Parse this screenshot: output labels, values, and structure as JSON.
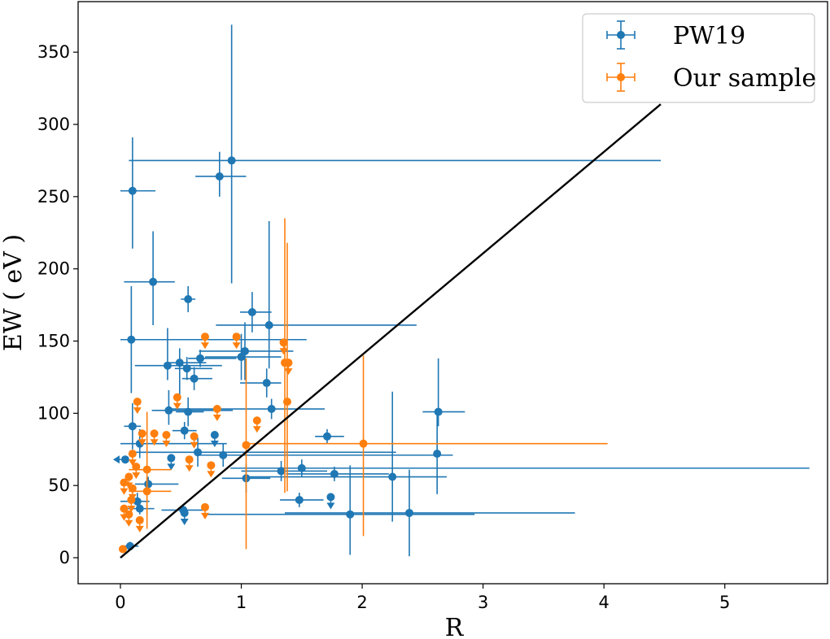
{
  "chart_data": {
    "type": "scatter",
    "xlabel": "R",
    "ylabel": "EW ( eV )",
    "xlim": [
      -0.35,
      5.85
    ],
    "ylim": [
      -18,
      385
    ],
    "xticks": [
      0,
      1,
      2,
      3,
      4,
      5
    ],
    "yticks": [
      0,
      50,
      100,
      150,
      200,
      250,
      300,
      350
    ],
    "grid": false,
    "legend_position": "top-right",
    "reference_line": {
      "x": [
        0.0,
        4.47
      ],
      "y": [
        0,
        314
      ],
      "color": "#000000"
    },
    "series": [
      {
        "name": "PW19",
        "color": "#1f77b4",
        "points": [
          {
            "x": 0.92,
            "y": 275,
            "xerr": [
              0.85,
              3.55
            ],
            "yerr": [
              85,
              94
            ]
          },
          {
            "x": 0.82,
            "y": 264,
            "xerr": [
              0.2,
              0.22
            ],
            "yerr": [
              14,
              17
            ]
          },
          {
            "x": 0.1,
            "y": 254,
            "xerr": [
              0.1,
              0.19
            ],
            "yerr": [
              40,
              37
            ]
          },
          {
            "x": 0.27,
            "y": 191,
            "xerr": [
              0.24,
              0.18
            ],
            "yerr": [
              30,
              35
            ]
          },
          {
            "x": 0.56,
            "y": 179,
            "xerr": [
              0.06,
              0.06
            ],
            "yerr": [
              9,
              9
            ]
          },
          {
            "x": 1.09,
            "y": 170,
            "xerr": [
              0.1,
              0.16
            ],
            "yerr": [
              14,
              14
            ]
          },
          {
            "x": 1.23,
            "y": 161,
            "xerr": [
              0.44,
              1.22
            ],
            "yerr": [
              30,
              72
            ]
          },
          {
            "x": 0.09,
            "y": 151,
            "xerr": [
              0.09,
              1.45
            ],
            "yerr": [
              37,
              37
            ]
          },
          {
            "x": 1.03,
            "y": 143,
            "xerr": [
              0.38,
              0.4
            ],
            "yerr": [
              20,
              20
            ]
          },
          {
            "x": 1.0,
            "y": 139,
            "xerr": [
              0.3,
              0.33
            ],
            "yerr": [
              16,
              16
            ]
          },
          {
            "x": 0.66,
            "y": 138,
            "xerr": [
              0.1,
              0.3
            ],
            "yerr": [
              6,
              6
            ]
          },
          {
            "x": 0.49,
            "y": 135,
            "xerr": [
              0.1,
              0.22
            ],
            "yerr": [
              24,
              10
            ]
          },
          {
            "x": 0.39,
            "y": 133,
            "xerr": [
              0.27,
              0.45
            ],
            "yerr": [
              10,
              26
            ]
          },
          {
            "x": 0.55,
            "y": 131,
            "xerr": [
              0.1,
              0.21
            ],
            "yerr": [
              8,
              8
            ]
          },
          {
            "x": 0.61,
            "y": 124,
            "xerr": [
              0.1,
              0.15
            ],
            "yerr": [
              8,
              8
            ]
          },
          {
            "x": 1.21,
            "y": 121,
            "xerr": [
              0.22,
              0.12
            ],
            "yerr": [
              10,
              10
            ]
          },
          {
            "x": 1.25,
            "y": 103,
            "xerr": [
              0.84,
              0.44
            ],
            "yerr": [
              7,
              7
            ]
          },
          {
            "x": 0.4,
            "y": 102,
            "xerr": [
              0.14,
              0.53
            ],
            "yerr": [
              10,
              14
            ]
          },
          {
            "x": 0.56,
            "y": 101,
            "xerr": [
              0.1,
              0.13
            ],
            "yerr": [
              10,
              10
            ]
          },
          {
            "x": 2.63,
            "y": 101,
            "xerr": [
              0.13,
              0.22
            ],
            "yerr": [
              10,
              37
            ]
          },
          {
            "x": 0.1,
            "y": 91,
            "xerr": [
              0.07,
              0.07
            ],
            "yerr": [
              16,
              16
            ]
          },
          {
            "x": 0.53,
            "y": 88,
            "xerr": [
              0.1,
              0.1
            ],
            "yerr": [
              6,
              6
            ]
          },
          {
            "x": 1.71,
            "y": 84,
            "xerr": [
              0.1,
              0.14
            ],
            "yerr": [
              5,
              5
            ]
          },
          {
            "x": 0.16,
            "y": 79,
            "xerr": [
              0.16,
              0.72
            ],
            "yerr": [
              10,
              10
            ]
          },
          {
            "x": 0.64,
            "y": 73,
            "xerr": [
              0.57,
              1.64
            ],
            "yerr": [
              10,
              10
            ]
          },
          {
            "x": 2.62,
            "y": 72,
            "xerr": [
              0.0,
              0.0
            ],
            "yerr": [
              28,
              28
            ]
          },
          {
            "x": 0.85,
            "y": 71,
            "xerr": [
              0.2,
              1.9
            ],
            "yerr": [
              8,
              8
            ]
          },
          {
            "x": 1.5,
            "y": 62,
            "xerr": [
              0.59,
              4.2
            ],
            "yerr": [
              6,
              6
            ]
          },
          {
            "x": 1.33,
            "y": 60,
            "xerr": [
              0.33,
              0.38
            ],
            "yerr": [
              7,
              7
            ]
          },
          {
            "x": 1.77,
            "y": 58,
            "xerr": [
              0.4,
              0.45
            ],
            "yerr": [
              5,
              5
            ]
          },
          {
            "x": 2.25,
            "y": 56,
            "xerr": [
              1.22,
              0.45
            ],
            "yerr": [
              31,
              59
            ]
          },
          {
            "x": 1.04,
            "y": 55,
            "xerr": [
              0.2,
              0.2
            ],
            "yerr": [
              10,
              10
            ]
          },
          {
            "x": 0.23,
            "y": 51,
            "xerr": [
              0.11,
              0.25
            ],
            "yerr": [
              5,
              5
            ]
          },
          {
            "x": 1.48,
            "y": 40,
            "xerr": [
              0.16,
              0.2
            ],
            "yerr": [
              5,
              5
            ]
          },
          {
            "x": 0.14,
            "y": 39,
            "xerr": [
              0.14,
              0.1
            ],
            "yerr": [
              6,
              6
            ]
          },
          {
            "x": 0.16,
            "y": 34,
            "xerr": [
              0.13,
              0.12
            ],
            "yerr": [
              4,
              4
            ]
          },
          {
            "x": 0.52,
            "y": 33,
            "xerr": [
              0.18,
              0.18
            ],
            "yerr": [
              4,
              4
            ]
          },
          {
            "x": 2.39,
            "y": 31,
            "xerr": [
              1.03,
              1.37
            ],
            "yerr": [
              30,
              30
            ]
          },
          {
            "x": 1.9,
            "y": 30,
            "xerr": [
              1.18,
              1.03
            ],
            "yerr": [
              28,
              34
            ]
          },
          {
            "x": 0.08,
            "y": 8,
            "xerr": [
              0.07,
              0.07
            ],
            "yerr": [
              3,
              3
            ]
          }
        ],
        "upper_limits": [
          {
            "x": 0.78,
            "y": 85
          },
          {
            "x": 0.42,
            "y": 69
          },
          {
            "x": 0.04,
            "y": 68,
            "left_limit": true
          },
          {
            "x": 1.74,
            "y": 42
          },
          {
            "x": 0.53,
            "y": 31
          }
        ]
      },
      {
        "name": "Our sample",
        "color": "#ff7f0e",
        "points": [
          {
            "x": 1.36,
            "y": 135,
            "xerr": [
              0.02,
              0.02
            ],
            "yerr": [
              90,
              100
            ]
          },
          {
            "x": 1.38,
            "y": 108,
            "xerr": [
              0.02,
              0.02
            ],
            "yerr": [
              62,
              110
            ]
          },
          {
            "x": 2.01,
            "y": 79,
            "xerr": [
              0.98,
              2.02
            ],
            "yerr": [
              64,
              61
            ]
          },
          {
            "x": 1.04,
            "y": 78,
            "xerr": [
              0.0,
              0.0
            ],
            "yerr": [
              72,
              60
            ]
          },
          {
            "x": 0.22,
            "y": 61,
            "xerr": [
              0.15,
              0.2
            ],
            "yerr": [
              41,
              40
            ]
          },
          {
            "x": 0.22,
            "y": 46,
            "xerr": [
              0.15,
              0.2
            ],
            "yerr": [
              16,
              10
            ]
          },
          {
            "x": 0.02,
            "y": 6,
            "xerr": [
              0.02,
              0.02
            ],
            "yerr": [
              2,
              2
            ]
          }
        ],
        "upper_limits": [
          {
            "x": 0.7,
            "y": 153
          },
          {
            "x": 0.96,
            "y": 153
          },
          {
            "x": 1.35,
            "y": 149
          },
          {
            "x": 1.39,
            "y": 135
          },
          {
            "x": 0.47,
            "y": 111
          },
          {
            "x": 0.8,
            "y": 103
          },
          {
            "x": 1.13,
            "y": 95
          },
          {
            "x": 0.14,
            "y": 108
          },
          {
            "x": 0.18,
            "y": 86
          },
          {
            "x": 0.28,
            "y": 86
          },
          {
            "x": 0.38,
            "y": 85
          },
          {
            "x": 0.61,
            "y": 84
          },
          {
            "x": 0.1,
            "y": 72
          },
          {
            "x": 0.57,
            "y": 68
          },
          {
            "x": 0.75,
            "y": 64
          },
          {
            "x": 0.13,
            "y": 63
          },
          {
            "x": 0.07,
            "y": 56
          },
          {
            "x": 0.03,
            "y": 52
          },
          {
            "x": 0.1,
            "y": 48
          },
          {
            "x": 0.09,
            "y": 40
          },
          {
            "x": 0.03,
            "y": 34
          },
          {
            "x": 0.07,
            "y": 30
          },
          {
            "x": 0.16,
            "y": 26
          },
          {
            "x": 0.7,
            "y": 35
          }
        ]
      }
    ]
  }
}
